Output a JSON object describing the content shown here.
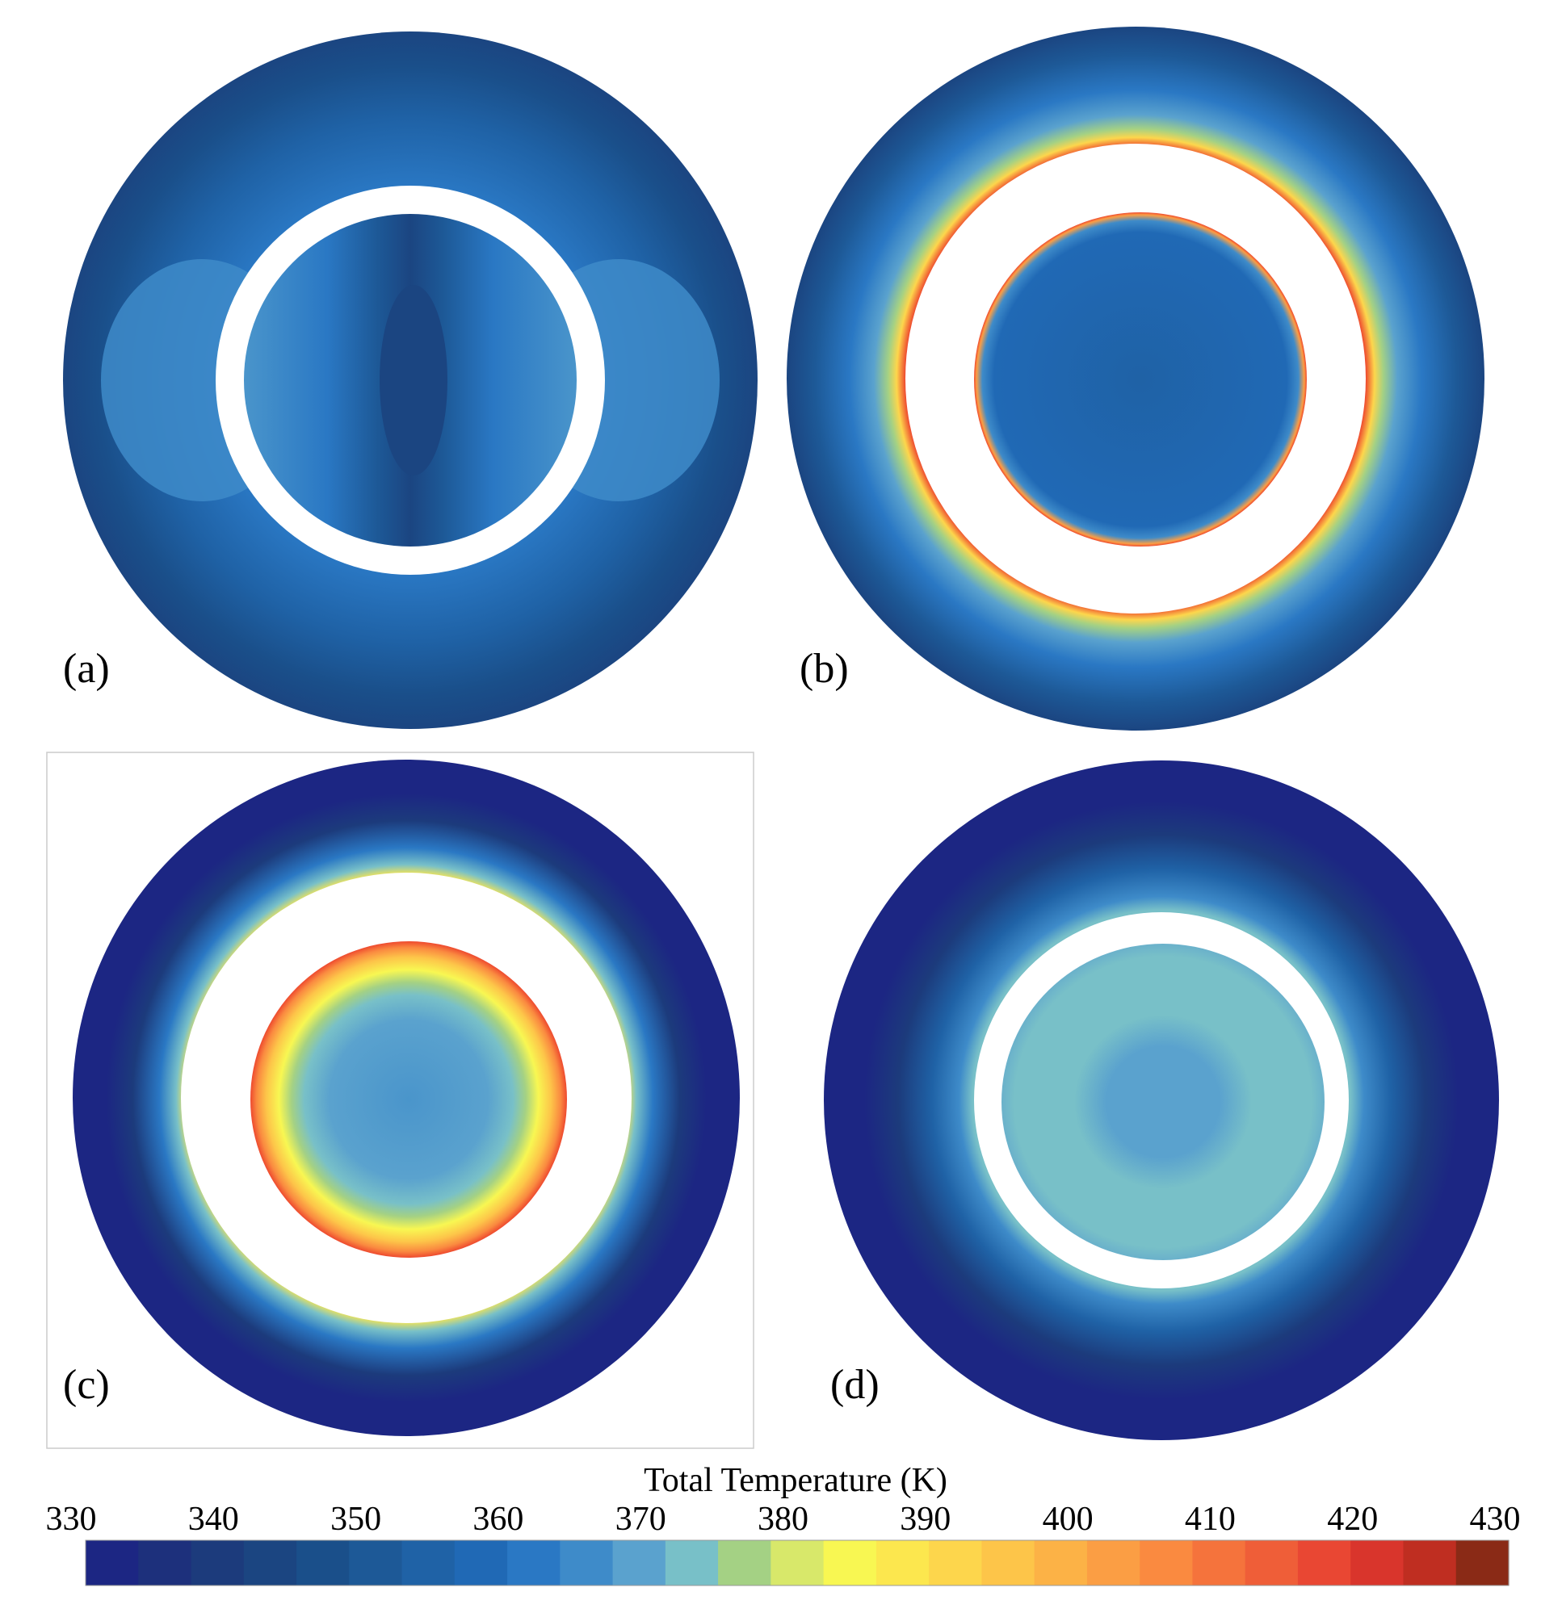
{
  "panels": [
    {
      "id": "a",
      "label": "(a)"
    },
    {
      "id": "b",
      "label": "(b)"
    },
    {
      "id": "c",
      "label": "(c)"
    },
    {
      "id": "d",
      "label": "(d)"
    }
  ],
  "colorbar": {
    "title": "Total Temperature (K)",
    "min": 330,
    "max": 430,
    "ticks": [
      "330",
      "340",
      "350",
      "360",
      "370",
      "380",
      "390",
      "400",
      "410",
      "420",
      "430"
    ],
    "colors": [
      "#1c2683",
      "#1d307c",
      "#1c3b7c",
      "#1b4581",
      "#1a4f8a",
      "#1d5997",
      "#1f62a6",
      "#2069b5",
      "#2a78c4",
      "#3e8bc9",
      "#5aa2ce",
      "#78c0c8",
      "#a4d184",
      "#d8e86a",
      "#f8f752",
      "#fce74e",
      "#fdd64c",
      "#fdc549",
      "#fcb246",
      "#fb9e44",
      "#fa8a40",
      "#f5733c",
      "#ef5e38",
      "#e94733",
      "#d9352c",
      "#bf2e21",
      "#8a2a16"
    ]
  },
  "palette": {
    "white_annulus": "#ffffff",
    "hot_ring": "#ee4a2f"
  }
}
